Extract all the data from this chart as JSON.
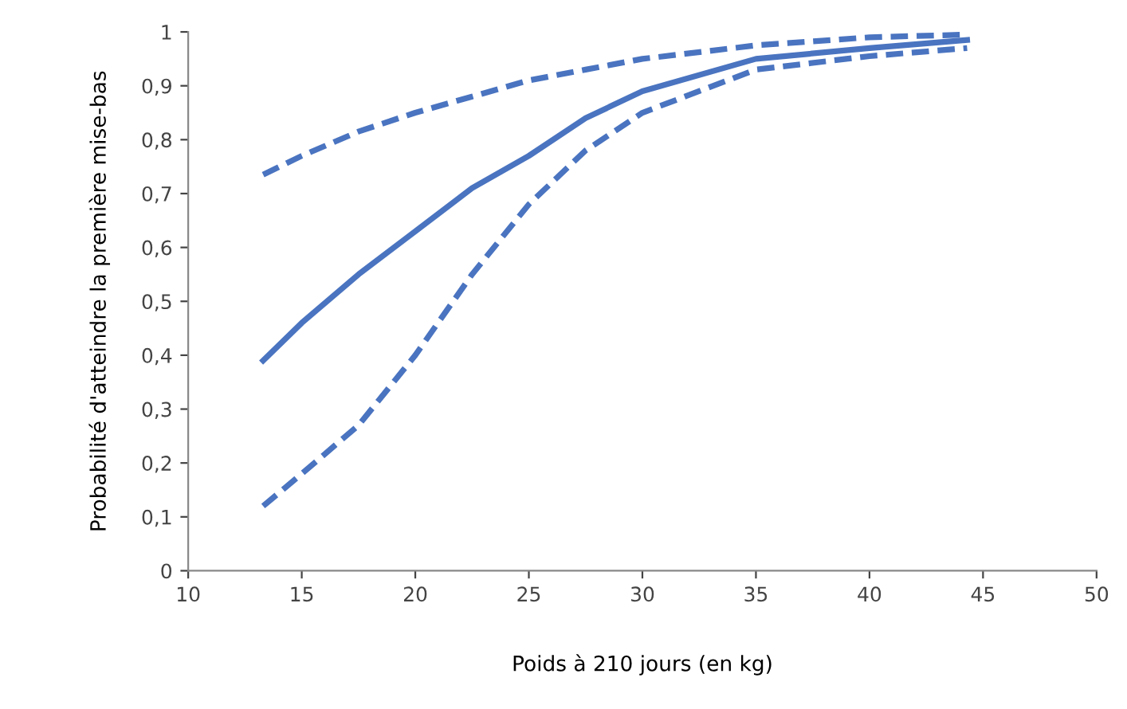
{
  "chart_data": {
    "type": "line",
    "xlabel": "Poids à 210 jours (en kg)",
    "ylabel": "Probabilité d'atteindre la première mise-bas",
    "x": [
      13.3,
      15,
      17.5,
      20,
      22.5,
      25,
      27.5,
      30,
      35,
      40,
      44.3
    ],
    "series": [
      {
        "color": "#4a74c0",
        "line_style": "solid",
        "values": [
          0.39,
          0.46,
          0.55,
          0.63,
          0.71,
          0.77,
          0.84,
          0.89,
          0.95,
          0.97,
          0.985
        ]
      },
      {
        "color": "#4a74c0",
        "line_style": "dashed",
        "values": [
          0.735,
          0.77,
          0.815,
          0.85,
          0.88,
          0.91,
          0.93,
          0.95,
          0.975,
          0.99,
          0.995
        ]
      },
      {
        "color": "#4a74c0",
        "line_style": "dashed",
        "values": [
          0.12,
          0.18,
          0.27,
          0.4,
          0.55,
          0.68,
          0.78,
          0.85,
          0.93,
          0.955,
          0.97
        ]
      }
    ],
    "xlim": [
      10,
      50
    ],
    "xticks": [
      10,
      15,
      20,
      25,
      30,
      35,
      40,
      45,
      50
    ],
    "ylim": [
      0,
      1
    ],
    "yticks": [
      0,
      {
        "value": 0.1,
        "label": "0,1"
      },
      {
        "value": 0.2,
        "label": "0,2"
      },
      {
        "value": 0.3,
        "label": "0,3"
      },
      {
        "value": 0.4,
        "label": "0,4"
      },
      {
        "value": 0.5,
        "label": "0,5"
      },
      {
        "value": 0.6,
        "label": "0,6"
      },
      {
        "value": 0.7,
        "label": "0,7"
      },
      {
        "value": 0.8,
        "label": "0,8"
      },
      {
        "value": 0.9,
        "label": "0,9"
      },
      1
    ],
    "grid": false,
    "legend": false,
    "marker": "none"
  }
}
